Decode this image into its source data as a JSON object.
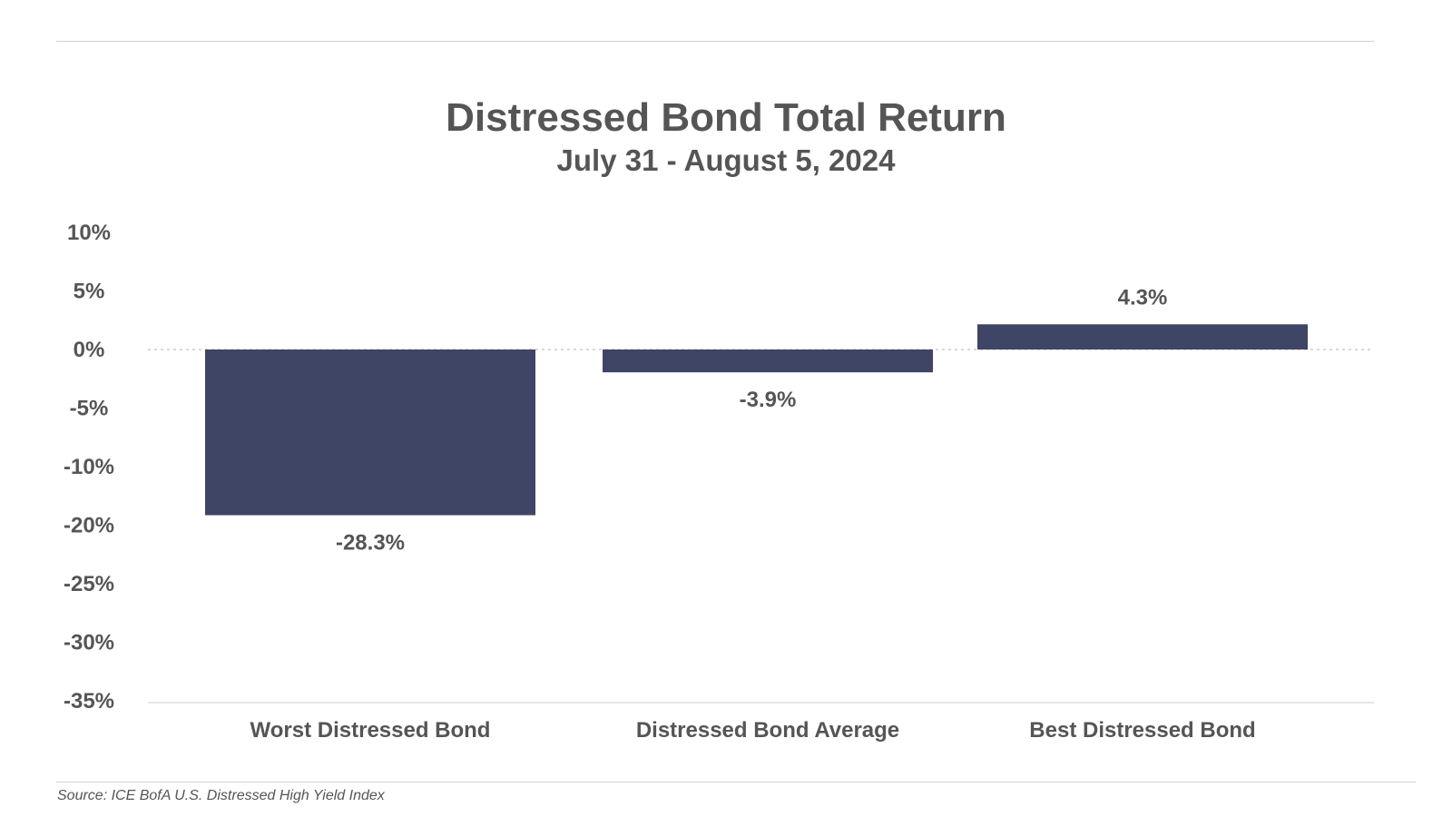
{
  "chart_data": {
    "type": "bar",
    "title": "Distressed Bond Total Return",
    "subtitle": "July 31 - August 5, 2024",
    "categories": [
      "Worst Distressed Bond",
      "Distressed Bond Average",
      "Best Distressed Bond"
    ],
    "values": [
      -28.3,
      -3.9,
      4.3
    ],
    "data_labels": [
      "-28.3%",
      "-3.9%",
      "4.3%"
    ],
    "y_ticks": [
      "10%",
      "5%",
      "0%",
      "-5%",
      "-10%",
      "-20%",
      "-25%",
      "-30%",
      "-35%"
    ],
    "xlabel": "",
    "ylabel": "",
    "grid": false,
    "legend": "none",
    "bar_color": "#3e4565",
    "zero_line": "dotted"
  },
  "source": "Source: ICE BofA U.S. Distressed High Yield Index"
}
